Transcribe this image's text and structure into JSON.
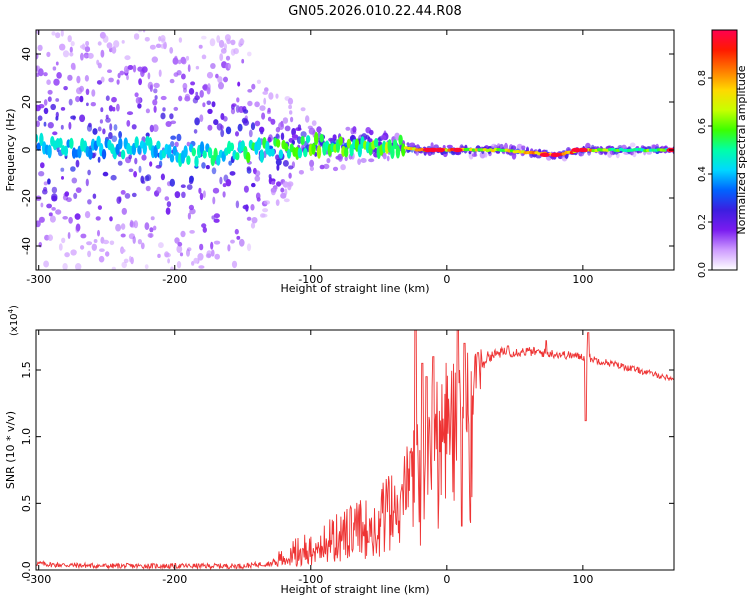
{
  "figure_title": "GN05.2026.010.22.44.R08",
  "chart_data": [
    {
      "type": "heatmap",
      "title": "GN05.2026.010.22.44.R08",
      "xlabel": "Height of straight line (km)",
      "ylabel": "Frequency (Hz)",
      "xlim": [
        -302,
        167
      ],
      "ylim": [
        -50,
        50
      ],
      "xticks": [
        -300,
        -200,
        -100,
        0,
        100
      ],
      "yticks": [
        -40,
        -20,
        0,
        20,
        40
      ],
      "xtick_labels": [
        "-300",
        "-200",
        "-100",
        "0",
        "100"
      ],
      "ytick_labels": [
        "-40",
        "-20",
        "0",
        "20",
        "40"
      ],
      "colorbar": {
        "label": "Normalized spectral amplitude",
        "range": [
          0,
          1
        ],
        "ticks": [
          0.0,
          0.2,
          0.4,
          0.6,
          0.8
        ],
        "tick_labels": [
          "0.0",
          "0.2",
          "0.4",
          "0.6",
          "0.8"
        ],
        "colormap": [
          "#ffffff",
          "#ce9cff",
          "#7a1cf0",
          "#3c1ee0",
          "#0064ff",
          "#00d8ff",
          "#00ffa8",
          "#3cff00",
          "#c8ff00",
          "#ffd800",
          "#ff7800",
          "#ff1a00",
          "#ff0050"
        ]
      },
      "core_profile": [
        [
          -300,
          2,
          0.42
        ],
        [
          -280,
          0,
          0.45
        ],
        [
          -260,
          1,
          0.42
        ],
        [
          -240,
          0,
          0.44
        ],
        [
          -220,
          1,
          0.43
        ],
        [
          -200,
          -2,
          0.46
        ],
        [
          -180,
          -2,
          0.48
        ],
        [
          -160,
          -1,
          0.52
        ],
        [
          -140,
          0,
          0.55
        ],
        [
          -120,
          1,
          0.55
        ],
        [
          -100,
          2,
          0.58
        ],
        [
          -80,
          2,
          0.6
        ],
        [
          -60,
          2,
          0.62
        ],
        [
          -40,
          2,
          0.66
        ],
        [
          -20,
          0,
          0.75
        ],
        [
          0,
          0,
          0.85
        ],
        [
          20,
          0,
          0.72
        ],
        [
          40,
          0,
          0.7
        ],
        [
          60,
          -1,
          0.75
        ],
        [
          80,
          -2,
          0.92
        ],
        [
          100,
          0,
          0.85
        ],
        [
          120,
          0,
          0.62
        ],
        [
          140,
          0,
          0.6
        ],
        [
          167,
          0,
          0.6
        ]
      ],
      "hotspots": [
        [
          -14,
          0
        ],
        [
          -10,
          0
        ],
        [
          -5,
          0
        ],
        [
          8,
          0
        ],
        [
          72,
          -2
        ],
        [
          80,
          -2
        ],
        [
          95,
          0
        ],
        [
          100,
          0
        ],
        [
          165,
          0
        ]
      ],
      "spread_hz": [
        [
          -300,
          50
        ],
        [
          -150,
          50
        ],
        [
          -140,
          30
        ],
        [
          -100,
          15
        ],
        [
          -60,
          10
        ],
        [
          -35,
          7
        ],
        [
          -30,
          4
        ],
        [
          0,
          3
        ],
        [
          167,
          2
        ]
      ]
    },
    {
      "type": "line",
      "title": "",
      "xlabel": "Height of straight line (km)",
      "ylabel": "SNR (10 * v/v)",
      "y_multiplier": "(x10",
      "y_multiplier_exp": "4",
      "y_multiplier_close": ")",
      "xlim": [
        -302,
        167
      ],
      "ylim": [
        0,
        1.8
      ],
      "xticks": [
        -300,
        -200,
        -100,
        0,
        100
      ],
      "yticks": [
        0.0,
        0.5,
        1.0,
        1.5
      ],
      "xtick_labels": [
        "-300",
        "-200",
        "-100",
        "0",
        "100"
      ],
      "ytick_labels": [
        "0.0",
        "0.5",
        "1.0",
        "1.5"
      ],
      "color": "#ee3333",
      "series": [
        {
          "name": "SNR",
          "envelope": [
            [
              -302,
              0.05
            ],
            [
              -290,
              0.04
            ],
            [
              -250,
              0.03
            ],
            [
              -200,
              0.03
            ],
            [
              -150,
              0.03
            ],
            [
              -130,
              0.05
            ],
            [
              -120,
              0.1
            ],
            [
              -100,
              0.18
            ],
            [
              -90,
              0.22
            ],
            [
              -80,
              0.25
            ],
            [
              -70,
              0.3
            ],
            [
              -60,
              0.35
            ],
            [
              -50,
              0.4
            ],
            [
              -40,
              0.55
            ],
            [
              -30,
              0.65
            ],
            [
              -25,
              0.75
            ],
            [
              -20,
              0.9
            ],
            [
              -15,
              1.0
            ],
            [
              -10,
              1.1
            ],
            [
              -5,
              1.15
            ],
            [
              0,
              1.2
            ],
            [
              5,
              1.25
            ],
            [
              10,
              1.28
            ],
            [
              15,
              1.35
            ],
            [
              20,
              1.45
            ],
            [
              25,
              1.55
            ],
            [
              30,
              1.6
            ],
            [
              40,
              1.63
            ],
            [
              60,
              1.64
            ],
            [
              80,
              1.62
            ],
            [
              100,
              1.6
            ],
            [
              120,
              1.55
            ],
            [
              140,
              1.5
            ],
            [
              167,
              1.43
            ]
          ],
          "spikes": [
            [
              -23,
              1.96
            ],
            [
              -18,
              1.55
            ],
            [
              -15,
              1.45
            ],
            [
              -10,
              1.6
            ],
            [
              8,
              1.85
            ],
            [
              11,
              0.33
            ],
            [
              13,
              1.7
            ],
            [
              23,
              1.63
            ],
            [
              45,
              1.68
            ],
            [
              73,
              1.72
            ],
            [
              102,
              1.12
            ],
            [
              104,
              1.78
            ]
          ],
          "noise": [
            [
              -302,
              0.02
            ],
            [
              -130,
              0.02
            ],
            [
              -100,
              0.09
            ],
            [
              -60,
              0.12
            ],
            [
              -30,
              0.16
            ],
            [
              0,
              0.22
            ],
            [
              20,
              0.18
            ],
            [
              30,
              0.04
            ],
            [
              167,
              0.02
            ]
          ]
        }
      ]
    }
  ]
}
